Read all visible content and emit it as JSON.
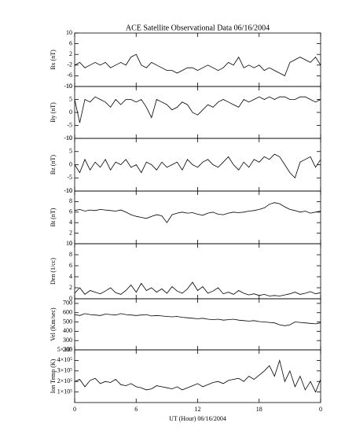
{
  "chart_data": [
    {
      "type": "line",
      "title": "ACE Satellite Observational Data   06/16/2004",
      "ylabel": "Bx (nT)",
      "color": "#000000",
      "x": [
        0,
        0.5,
        1,
        1.5,
        2,
        2.5,
        3,
        3.5,
        4,
        4.5,
        5,
        5.5,
        6,
        6.5,
        7,
        7.5,
        8,
        8.5,
        9,
        9.5,
        10,
        10.5,
        11,
        11.5,
        12,
        12.5,
        13,
        13.5,
        14,
        14.5,
        15,
        15.5,
        16,
        16.5,
        17,
        17.5,
        18,
        18.5,
        19,
        19.5,
        20,
        20.5,
        21,
        21.5,
        22,
        22.5,
        23,
        23.5,
        24
      ],
      "values": [
        -2,
        -1,
        -3,
        -2,
        -1,
        -2,
        -1,
        -3,
        -2,
        -1,
        -2,
        1,
        2,
        -2,
        -3,
        -1,
        -2,
        -3,
        -4,
        -4,
        -5,
        -4,
        -3,
        -3,
        -4,
        -3,
        -2,
        -3,
        -4,
        -3,
        -1,
        -2,
        1,
        -3,
        -2,
        -3,
        -2,
        -4,
        -3,
        -4,
        -5,
        -6,
        -1,
        0,
        1,
        0,
        -1,
        1,
        -2
      ],
      "xlim": [
        0,
        24
      ],
      "ylim": [
        -10,
        10
      ],
      "yticks": [
        -10,
        -6,
        -2,
        2,
        6,
        10
      ]
    },
    {
      "type": "line",
      "ylabel": "By (nT)",
      "color": "#000000",
      "x": [
        0,
        0.5,
        1,
        1.5,
        2,
        2.5,
        3,
        3.5,
        4,
        4.5,
        5,
        5.5,
        6,
        6.5,
        7,
        7.5,
        8,
        8.5,
        9,
        9.5,
        10,
        10.5,
        11,
        11.5,
        12,
        12.5,
        13,
        13.5,
        14,
        14.5,
        15,
        15.5,
        16,
        16.5,
        17,
        17.5,
        18,
        18.5,
        19,
        19.5,
        20,
        20.5,
        21,
        21.5,
        22,
        22.5,
        23,
        23.5,
        24
      ],
      "values": [
        5,
        -4,
        5,
        4,
        6,
        5,
        4,
        2,
        5,
        3,
        5,
        5,
        4,
        5,
        2,
        -2,
        5,
        4,
        3,
        1,
        2,
        4,
        3,
        0,
        -1,
        1,
        3,
        2,
        4,
        5,
        4,
        3,
        2,
        5,
        4,
        5,
        6,
        5,
        6,
        5,
        6,
        6,
        5,
        5,
        6,
        6,
        5,
        4,
        5
      ],
      "xlim": [
        0,
        24
      ],
      "ylim": [
        -10,
        10
      ],
      "yticks": [
        -10,
        -5,
        0,
        5,
        10
      ]
    },
    {
      "type": "line",
      "ylabel": "Bz (nT)",
      "color": "#000000",
      "x": [
        0,
        0.5,
        1,
        1.5,
        2,
        2.5,
        3,
        3.5,
        4,
        4.5,
        5,
        5.5,
        6,
        6.5,
        7,
        7.5,
        8,
        8.5,
        9,
        9.5,
        10,
        10.5,
        11,
        11.5,
        12,
        12.5,
        13,
        13.5,
        14,
        14.5,
        15,
        15.5,
        16,
        16.5,
        17,
        17.5,
        18,
        18.5,
        19,
        19.5,
        20,
        20.5,
        21,
        21.5,
        22,
        22.5,
        23,
        23.5,
        24
      ],
      "values": [
        0,
        -3,
        2,
        -2,
        1,
        -1,
        2,
        -2,
        1,
        0,
        2,
        -1,
        0,
        -3,
        1,
        0,
        -2,
        1,
        -1,
        0,
        1,
        -2,
        2,
        0,
        -1,
        1,
        2,
        0,
        -1,
        1,
        3,
        0,
        -2,
        1,
        -1,
        2,
        1,
        3,
        2,
        4,
        3,
        0,
        -3,
        -5,
        1,
        2,
        3,
        -1,
        2
      ],
      "xlim": [
        0,
        24
      ],
      "ylim": [
        -10,
        10
      ],
      "yticks": [
        -10,
        -5,
        0,
        5,
        10
      ]
    },
    {
      "type": "line",
      "ylabel": "Bt (nT)",
      "color": "#000000",
      "x": [
        0,
        0.5,
        1,
        1.5,
        2,
        2.5,
        3,
        3.5,
        4,
        4.5,
        5,
        5.5,
        6,
        6.5,
        7,
        7.5,
        8,
        8.5,
        9,
        9.5,
        10,
        10.5,
        11,
        11.5,
        12,
        12.5,
        13,
        13.5,
        14,
        14.5,
        15,
        15.5,
        16,
        16.5,
        17,
        17.5,
        18,
        18.5,
        19,
        19.5,
        20,
        20.5,
        21,
        21.5,
        22,
        22.5,
        23,
        23.5,
        24
      ],
      "values": [
        6.3,
        6.5,
        6.2,
        6.4,
        6.3,
        6.5,
        6.4,
        6.3,
        6.2,
        6.4,
        6.0,
        5.5,
        5.2,
        5.0,
        4.8,
        5.2,
        5.5,
        5.3,
        4.0,
        5.5,
        5.8,
        6.0,
        5.8,
        5.9,
        5.6,
        5.4,
        5.8,
        6.0,
        5.6,
        5.5,
        5.8,
        6.0,
        5.9,
        6.0,
        6.2,
        6.3,
        6.5,
        6.8,
        7.5,
        7.8,
        7.6,
        7.0,
        6.5,
        6.3,
        6.0,
        6.2,
        5.8,
        6.0,
        6.2
      ],
      "xlim": [
        0,
        24
      ],
      "ylim": [
        0,
        10
      ],
      "yticks": [
        0,
        2,
        4,
        6,
        8,
        10
      ]
    },
    {
      "type": "line",
      "ylabel": "Den (1/cc)",
      "color": "#000000",
      "x": [
        0,
        0.5,
        1,
        1.5,
        2,
        2.5,
        3,
        3.5,
        4,
        4.5,
        5,
        5.5,
        6,
        6.5,
        7,
        7.5,
        8,
        8.5,
        9,
        9.5,
        10,
        10.5,
        11,
        11.5,
        12,
        12.5,
        13,
        13.5,
        14,
        14.5,
        15,
        15.5,
        16,
        16.5,
        17,
        17.5,
        18,
        18.5,
        19,
        19.5,
        20,
        20.5,
        21,
        21.5,
        22,
        22.5,
        23,
        23.5,
        24
      ],
      "values": [
        1.0,
        2.0,
        0.8,
        1.5,
        1.2,
        0.9,
        1.4,
        2.0,
        1.1,
        0.8,
        1.5,
        2.5,
        1.2,
        2.8,
        1.5,
        2.0,
        1.2,
        1.8,
        1.0,
        2.2,
        1.4,
        1.0,
        1.8,
        3.0,
        1.5,
        2.2,
        1.0,
        1.4,
        2.0,
        0.9,
        1.2,
        0.8,
        1.5,
        1.0,
        0.7,
        0.9,
        0.6,
        0.8,
        0.5,
        0.6,
        0.5,
        0.7,
        0.9,
        1.2,
        0.8,
        1.0,
        1.3,
        0.9,
        1.1
      ],
      "xlim": [
        0,
        24
      ],
      "ylim": [
        0,
        10
      ],
      "yticks": [
        0,
        2,
        4,
        6,
        8,
        10
      ]
    },
    {
      "type": "line",
      "ylabel": "Vel (Km/sec)",
      "color": "#000000",
      "x": [
        0,
        0.5,
        1,
        1.5,
        2,
        2.5,
        3,
        3.5,
        4,
        4.5,
        5,
        5.5,
        6,
        6.5,
        7,
        7.5,
        8,
        8.5,
        9,
        9.5,
        10,
        10.5,
        11,
        11.5,
        12,
        12.5,
        13,
        13.5,
        14,
        14.5,
        15,
        15.5,
        16,
        16.5,
        17,
        17.5,
        18,
        18.5,
        19,
        19.5,
        20,
        20.5,
        21,
        21.5,
        22,
        22.5,
        23,
        23.5,
        24
      ],
      "values": [
        580,
        570,
        590,
        580,
        575,
        570,
        585,
        580,
        575,
        590,
        580,
        575,
        570,
        575,
        580,
        565,
        570,
        565,
        560,
        555,
        560,
        550,
        545,
        540,
        535,
        540,
        530,
        525,
        530,
        520,
        525,
        530,
        520,
        515,
        510,
        515,
        505,
        500,
        495,
        490,
        470,
        460,
        470,
        500,
        495,
        490,
        485,
        480,
        490
      ],
      "xlim": [
        0,
        24
      ],
      "ylim": [
        200,
        750
      ],
      "yticks": [
        200,
        300,
        400,
        500,
        600,
        700
      ]
    },
    {
      "type": "line",
      "ylabel": "Ion Temp (K)",
      "xlabel": "UT (Hour)   06/16/2004",
      "color": "#000000",
      "x": [
        0,
        0.5,
        1,
        1.5,
        2,
        2.5,
        3,
        3.5,
        4,
        4.5,
        5,
        5.5,
        6,
        6.5,
        7,
        7.5,
        8,
        8.5,
        9,
        9.5,
        10,
        10.5,
        11,
        11.5,
        12,
        12.5,
        13,
        13.5,
        14,
        14.5,
        15,
        15.5,
        16,
        16.5,
        17,
        17.5,
        18,
        18.5,
        19,
        19.5,
        20,
        20.5,
        21,
        21.5,
        22,
        22.5,
        23,
        23.5,
        24
      ],
      "values": [
        200000,
        220000,
        150000,
        210000,
        230000,
        180000,
        200000,
        190000,
        220000,
        170000,
        160000,
        180000,
        150000,
        140000,
        120000,
        130000,
        160000,
        150000,
        140000,
        130000,
        150000,
        120000,
        140000,
        160000,
        180000,
        150000,
        170000,
        190000,
        200000,
        180000,
        210000,
        220000,
        230000,
        200000,
        250000,
        220000,
        260000,
        300000,
        350000,
        250000,
        400000,
        200000,
        300000,
        150000,
        250000,
        120000,
        200000,
        100000,
        220000
      ],
      "xlim": [
        0,
        24
      ],
      "ylim": [
        0,
        500000
      ],
      "yticks": [
        {
          "value": 100000,
          "label": "1×10⁵"
        },
        {
          "value": 200000,
          "label": "2×10⁵"
        },
        {
          "value": 300000,
          "label": "3×10⁵"
        },
        {
          "value": 400000,
          "label": "4×10⁵"
        },
        {
          "value": 500000,
          "label": "5×10⁵"
        }
      ],
      "xticks": [
        0,
        6,
        12,
        18,
        {
          "value": 24,
          "label": "0"
        }
      ]
    }
  ]
}
